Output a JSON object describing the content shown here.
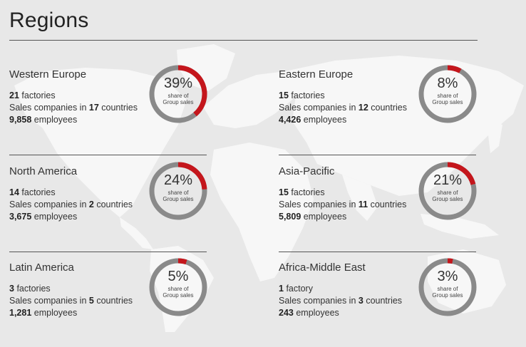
{
  "page": {
    "title": "Regions"
  },
  "colors": {
    "ring": "#8a8a8a",
    "accent": "#c4161c",
    "map": "#f6f6f6",
    "background": "#e8e8e8"
  },
  "regions": [
    {
      "name": "Western Europe",
      "factories_num": "21",
      "factories_label": "factories",
      "sales_prefix": "Sales companies in",
      "countries_num": "17",
      "countries_label": "countries",
      "employees_num": "9,858",
      "employees_label": "employees",
      "share": "39%",
      "share_value": 39,
      "share_sub1": "share of",
      "share_sub2": "Group sales"
    },
    {
      "name": "Eastern Europe",
      "factories_num": "15",
      "factories_label": "factories",
      "sales_prefix": "Sales companies in",
      "countries_num": "12",
      "countries_label": "countries",
      "employees_num": "4,426",
      "employees_label": "employees",
      "share": "8%",
      "share_value": 8,
      "share_sub1": "share of",
      "share_sub2": "Group sales"
    },
    {
      "name": "North America",
      "factories_num": "14",
      "factories_label": "factories",
      "sales_prefix": "Sales companies in",
      "countries_num": "2",
      "countries_label": "countries",
      "employees_num": "3,675",
      "employees_label": "employees",
      "share": "24%",
      "share_value": 24,
      "share_sub1": "share of",
      "share_sub2": "Group sales"
    },
    {
      "name": "Asia-Pacific",
      "factories_num": "15",
      "factories_label": "factories",
      "sales_prefix": "Sales companies in",
      "countries_num": "11",
      "countries_label": "countries",
      "employees_num": "5,809",
      "employees_label": "employees",
      "share": "21%",
      "share_value": 21,
      "share_sub1": "share of",
      "share_sub2": "Group sales"
    },
    {
      "name": "Latin America",
      "factories_num": "3",
      "factories_label": "factories",
      "sales_prefix": "Sales companies in",
      "countries_num": "5",
      "countries_label": "countries",
      "employees_num": "1,281",
      "employees_label": "employees",
      "share": "5%",
      "share_value": 5,
      "share_sub1": "share of",
      "share_sub2": "Group sales"
    },
    {
      "name": "Africa-Middle East",
      "factories_num": "1",
      "factories_label": "factory",
      "sales_prefix": "Sales companies in",
      "countries_num": "3",
      "countries_label": "countries",
      "employees_num": "243",
      "employees_label": "employees",
      "share": "3%",
      "share_value": 3,
      "share_sub1": "share of",
      "share_sub2": "Group sales"
    }
  ],
  "chart_data": {
    "type": "pie",
    "title": "",
    "categories": [
      "Western Europe",
      "Eastern Europe",
      "North America",
      "Asia-Pacific",
      "Latin America",
      "Africa-Middle East"
    ],
    "values": [
      39,
      8,
      24,
      21,
      5,
      3
    ],
    "unit": "% share of Group sales"
  }
}
